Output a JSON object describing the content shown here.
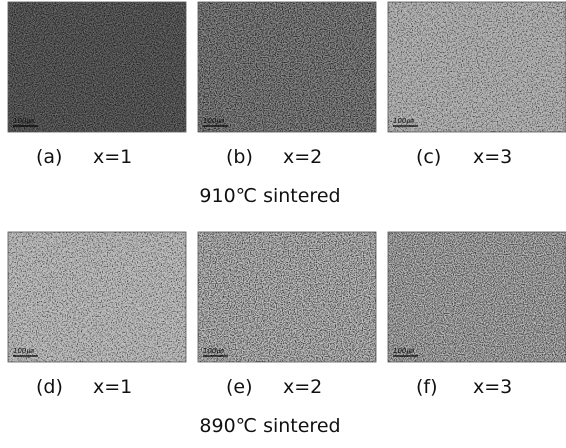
{
  "groups": [
    {
      "caption": "910℃ sintered",
      "panels": [
        {
          "label": "(a)",
          "composition": "x=1",
          "scale": "100㎛"
        },
        {
          "label": "(b)",
          "composition": "x=2",
          "scale": "100㎛"
        },
        {
          "label": "(c)",
          "composition": "x=3",
          "scale": "100㎛"
        }
      ]
    },
    {
      "caption": "890℃ sintered",
      "panels": [
        {
          "label": "(d)",
          "composition": "x=1",
          "scale": "100㎛"
        },
        {
          "label": "(e)",
          "composition": "x=2",
          "scale": "100㎛"
        },
        {
          "label": "(f)",
          "composition": "x=3",
          "scale": "100㎛"
        }
      ]
    }
  ]
}
